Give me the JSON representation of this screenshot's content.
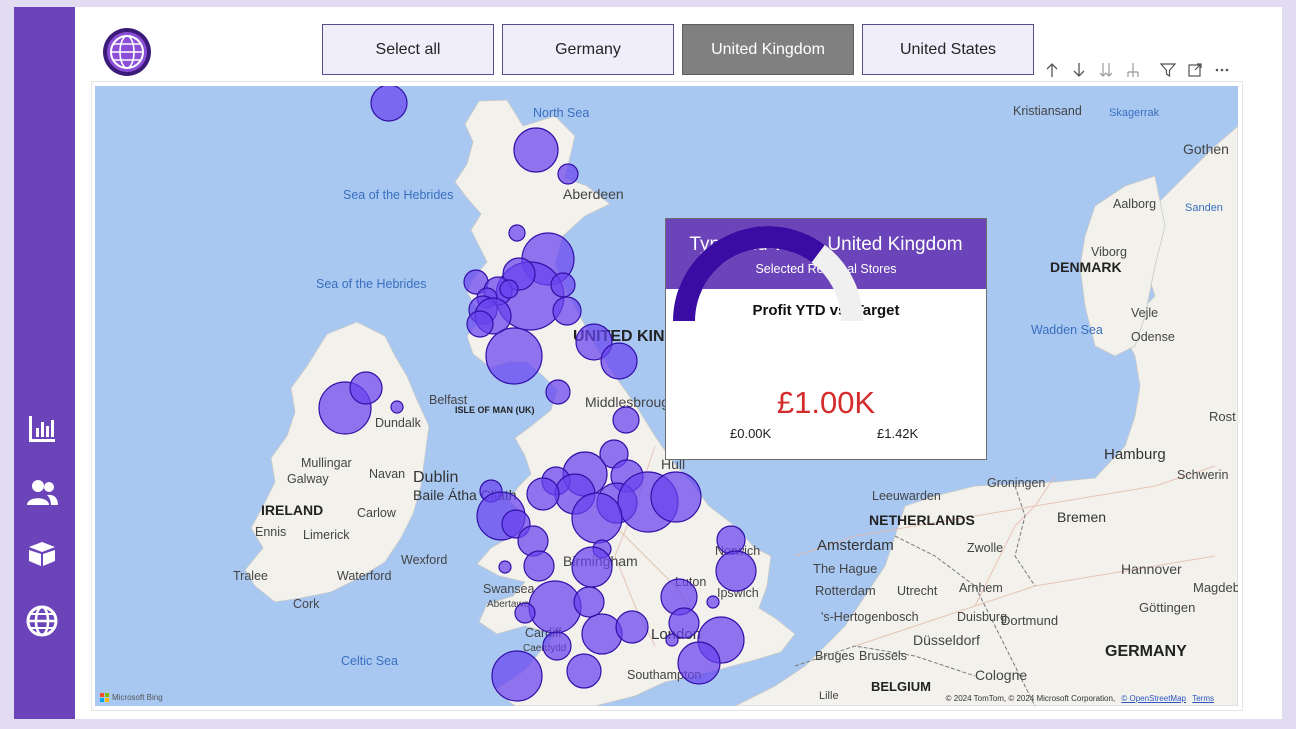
{
  "slicer": {
    "options": [
      "Select all",
      "Germany",
      "United Kingdom",
      "United States"
    ],
    "selected": "United Kingdom"
  },
  "nav_icons": [
    "bar-chart-icon",
    "people-icon",
    "box-icon",
    "globe-icon"
  ],
  "toolbar_icons": [
    "arrow-up-icon",
    "arrow-down-icon",
    "double-arrow-down-icon",
    "expand-hierarchy-icon",
    "filter-icon",
    "focus-mode-icon",
    "more-options-icon"
  ],
  "map": {
    "labels": {
      "north_sea": "North Sea",
      "sea_hebrides_1": "Sea of the Hebrides",
      "sea_hebrides_2": "Sea of the Hebrides",
      "aberdeen": "Aberdeen",
      "united_kingdom": "UNITED KINGDOM",
      "belfast": "Belfast",
      "isle_of_man": "ISLE OF MAN (UK)",
      "dundalk": "Dundalk",
      "middlesbrough": "Middlesbrough",
      "mullingar": "Mullingar",
      "navan": "Navan",
      "dublin": "Dublin",
      "baile_atha_cliath": "Baile Átha Cliath",
      "galway": "Galway",
      "ireland": "IRELAND",
      "carlow": "Carlow",
      "ennis": "Ennis",
      "limerick": "Limerick",
      "wexford": "Wexford",
      "tralee": "Tralee",
      "waterford": "Waterford",
      "cork": "Cork",
      "hull": "Hull",
      "birmingham": "Birmingham",
      "swansea": "Swansea",
      "abertawe": "Abertawe",
      "cardiff": "Cardiff",
      "caerdydd": "Caerdydd",
      "luton": "Luton",
      "london": "London",
      "norwich": "Norwich",
      "ipswich": "Ipswich",
      "southampton": "Southampton",
      "celtic_sea": "Celtic Sea",
      "kristiansand": "Kristiansand",
      "skagerrak": "Skagerrak",
      "gothenburg": "Gothen",
      "aalborg": "Aalborg",
      "sanden": "Sanden",
      "viborg": "Viborg",
      "denmark": "DENMARK",
      "vejle": "Vejle",
      "wadden_sea": "Wadden Sea",
      "odense": "Odense",
      "rostock": "Rost",
      "hamburg": "Hamburg",
      "schwerin": "Schwerin",
      "groningen": "Groningen",
      "leeuwarden": "Leeuwarden",
      "netherlands": "NETHERLANDS",
      "bremen": "Bremen",
      "amsterdam": "Amsterdam",
      "zwolle": "Zwolle",
      "the_hague": "The Hague",
      "hannover": "Hannover",
      "rotterdam": "Rotterdam",
      "utrecht": "Utrecht",
      "arnhem": "Arnhem",
      "magdeburg": "Magdebur",
      "hertogenbosch": "'s-Hertogenbosch",
      "duisburg": "Duisburg",
      "gottingen": "Göttingen",
      "dortmund": "Dortmund",
      "dusseldorf": "Düsseldorf",
      "germany": "GERMANY",
      "bruges": "Bruges",
      "brussels": "Brussels",
      "cologne": "Cologne",
      "belgium": "BELGIUM",
      "lille": "Lille"
    },
    "attribution": "© 2024 TomTom, © 2024 Microsoft Corporation,",
    "osm_link": "© OpenStreetMap",
    "terms_link": "Terms",
    "provider": "Microsoft Bing"
  },
  "tooltip": {
    "title": "Tyne and Wear, United Kingdom",
    "subtitle": "Selected Regional Stores",
    "gauge_title": "Profit YTD vs. Target",
    "value": "£1.00K",
    "min": "£0.00K",
    "max": "£1.42K",
    "value_fraction": 0.704
  },
  "colors": {
    "sidebar": "#6a44b8",
    "accent": "#6a44b8",
    "bubble_fill": "#6842ee",
    "gauge_fill": "#3a0ca3",
    "gauge_track": "#f0f0f0",
    "value_text": "#d42b2b",
    "selected_slicer": "#808080"
  }
}
